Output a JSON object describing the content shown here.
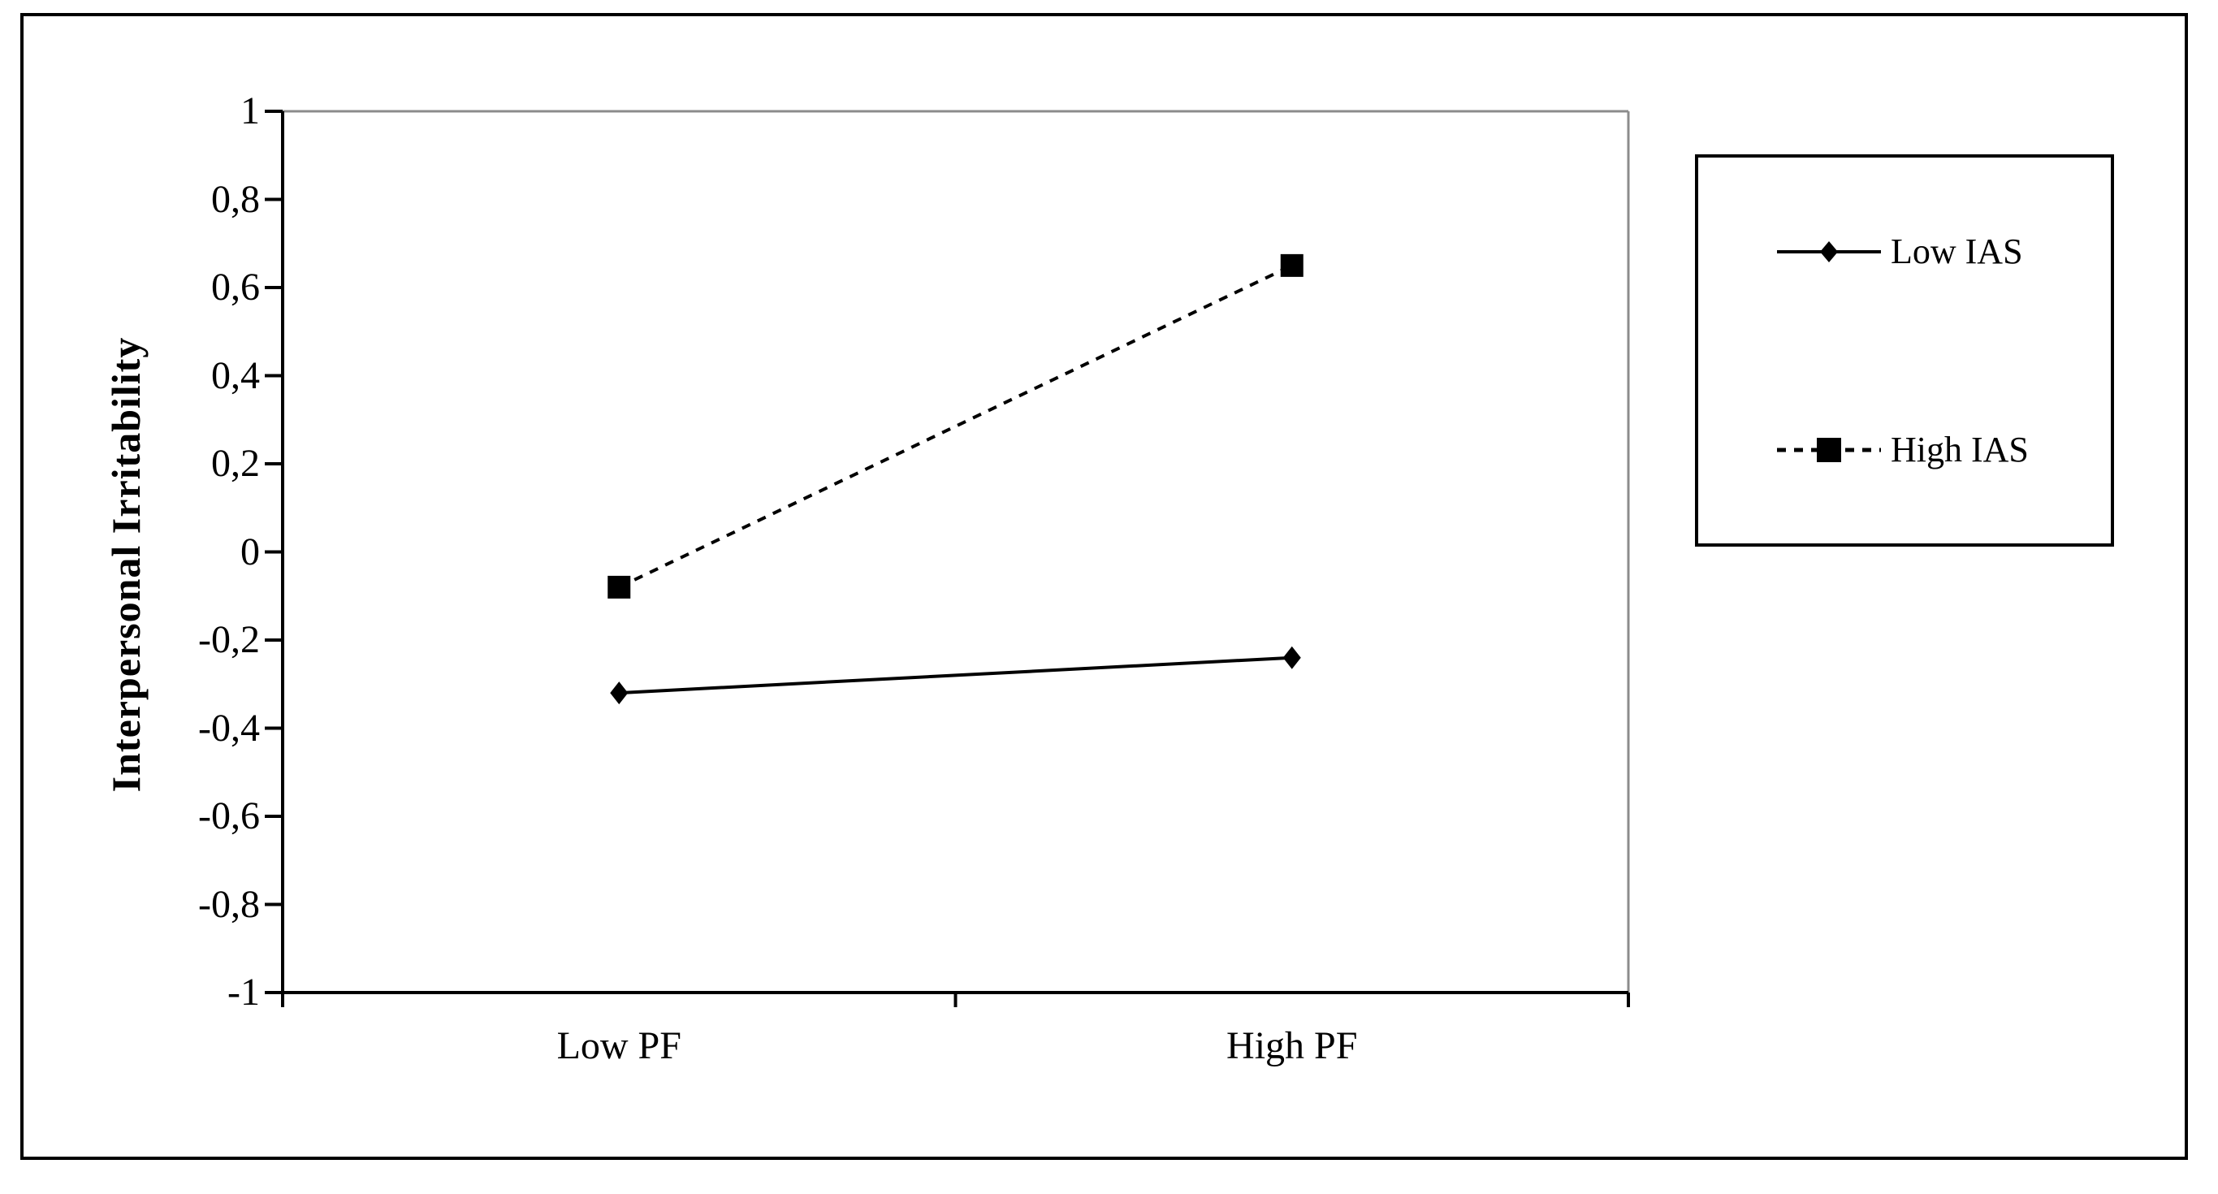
{
  "chart_data": {
    "type": "line",
    "categories": [
      "Low PF",
      "High PF"
    ],
    "series": [
      {
        "name": "Low IAS",
        "values": [
          -0.32,
          -0.24
        ],
        "line_style": "solid",
        "marker": "diamond"
      },
      {
        "name": "High IAS",
        "values": [
          -0.08,
          0.65
        ],
        "line_style": "dashed",
        "marker": "square"
      }
    ],
    "title": "",
    "xlabel": "",
    "ylabel": "Interpersonal Irritability",
    "ylim": [
      -1,
      1
    ],
    "ytick_step": 0.2,
    "ytick_labels": [
      "1",
      "0,8",
      "0,6",
      "0,4",
      "0,2",
      "0",
      "-0,2",
      "-0,4",
      "-0,6",
      "-0,8",
      "-1"
    ],
    "grid": false,
    "legend_position": "right"
  },
  "legend": {
    "entries": [
      {
        "label": "Low IAS"
      },
      {
        "label": "High IAS"
      }
    ]
  },
  "colors": {
    "series": "#000000",
    "axis": "#000000",
    "plot_frame_gray": "#8c8c8c",
    "background": "#ffffff"
  }
}
